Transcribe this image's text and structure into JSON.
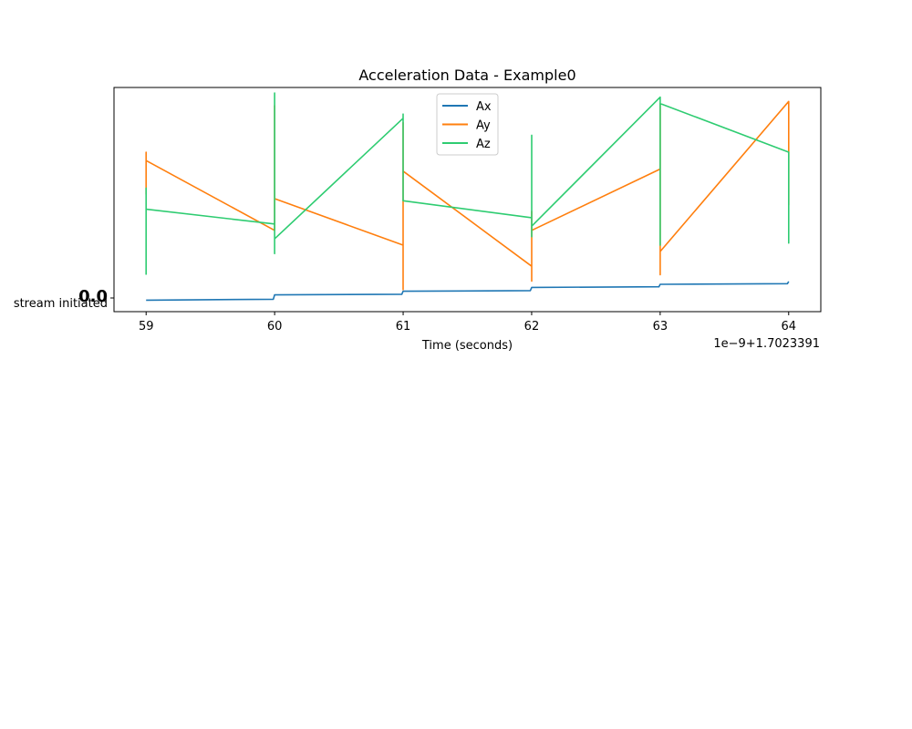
{
  "chart_data": {
    "type": "line",
    "title": "Acceleration Data - Example0",
    "xlabel": "Time (seconds)",
    "ylabel": "",
    "x_offset_label": "1e−9+1.7023391",
    "x_ticks": [
      "59",
      "60",
      "61",
      "62",
      "63",
      "64"
    ],
    "xlim": [
      58.75,
      64.25
    ],
    "y_tick_label": "stream initiated",
    "y_overlap_label": "0.0",
    "grid": false,
    "legend_position": "upper center",
    "series": [
      {
        "name": "Ax",
        "color": "#1f77b4",
        "points": [
          [
            59,
            2.0
          ],
          [
            59.99,
            2.4
          ],
          [
            60,
            4.5
          ],
          [
            60.99,
            4.8
          ],
          [
            61,
            6.2
          ],
          [
            61.99,
            6.5
          ],
          [
            62,
            8.0
          ],
          [
            62.99,
            8.3
          ],
          [
            63,
            9.5
          ],
          [
            63.99,
            9.8
          ],
          [
            64,
            10.8
          ]
        ]
      },
      {
        "name": "Ay",
        "color": "#ff7f0e",
        "points": [
          [
            59,
            52
          ],
          [
            59,
            72
          ],
          [
            59,
            62
          ],
          [
            59,
            68
          ],
          [
            60,
            35
          ],
          [
            60,
            94
          ],
          [
            60,
            50
          ],
          [
            61,
            28
          ],
          [
            61,
            86
          ],
          [
            61,
            7
          ],
          [
            61,
            63
          ],
          [
            62,
            18
          ],
          [
            62,
            44
          ],
          [
            62,
            11
          ],
          [
            62,
            35
          ],
          [
            63,
            64
          ],
          [
            63,
            14
          ],
          [
            63,
            95
          ],
          [
            63,
            25
          ],
          [
            64,
            96
          ],
          [
            64,
            47
          ],
          [
            64,
            88
          ]
        ]
      },
      {
        "name": "Az",
        "color": "#2ecc71",
        "points": [
          [
            59,
            14
          ],
          [
            59,
            55
          ],
          [
            59,
            28
          ],
          [
            59,
            45
          ],
          [
            60,
            38
          ],
          [
            60,
            100
          ],
          [
            60,
            24
          ],
          [
            60,
            31
          ],
          [
            61,
            88
          ],
          [
            61,
            90
          ],
          [
            61,
            49
          ],
          [
            62,
            41
          ],
          [
            62,
            80
          ],
          [
            62,
            32
          ],
          [
            62,
            37
          ],
          [
            63,
            98
          ],
          [
            63,
            28
          ],
          [
            63,
            95
          ],
          [
            64,
            72
          ],
          [
            64,
            59
          ],
          [
            64,
            29
          ],
          [
            64,
            48
          ]
        ]
      }
    ]
  }
}
